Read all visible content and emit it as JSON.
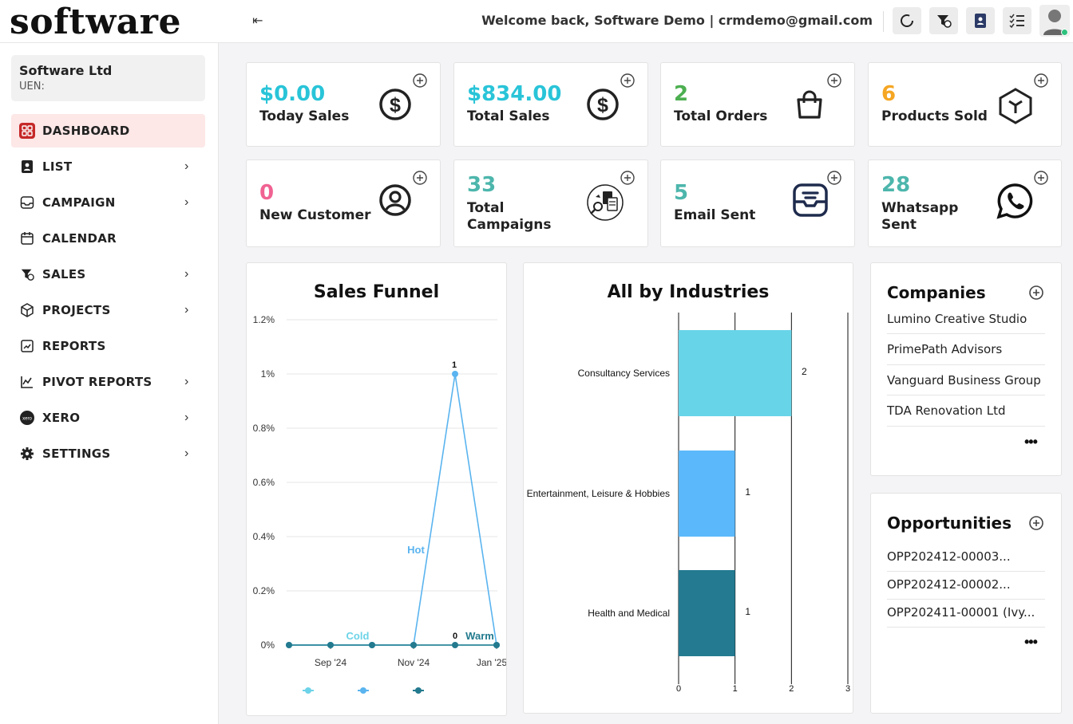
{
  "header": {
    "logo_text": "software",
    "collapse_icon": "⇤",
    "welcome_text": "Welcome back, Software Demo | crmdemo@gmail.com"
  },
  "sidebar": {
    "company_name": "Software Ltd",
    "company_uen": "UEN:",
    "items": [
      {
        "label": "DASHBOARD",
        "icon": "dashboard-icon",
        "active": true,
        "chevron": ""
      },
      {
        "label": "LIST",
        "icon": "contact-book-icon",
        "active": false,
        "chevron": "›"
      },
      {
        "label": "CAMPAIGN",
        "icon": "inbox-icon",
        "active": false,
        "chevron": "›"
      },
      {
        "label": "CALENDAR",
        "icon": "calendar-icon",
        "active": false,
        "chevron": ""
      },
      {
        "label": "SALES",
        "icon": "sales-funnel-icon",
        "active": false,
        "chevron": "›"
      },
      {
        "label": "PROJECTS",
        "icon": "cube-icon",
        "active": false,
        "chevron": "›"
      },
      {
        "label": "REPORTS",
        "icon": "report-icon",
        "active": false,
        "chevron": ""
      },
      {
        "label": "PIVOT REPORTS",
        "icon": "line-chart-icon",
        "active": false,
        "chevron": "›"
      },
      {
        "label": "XERO",
        "icon": "xero-icon",
        "active": false,
        "chevron": "›"
      },
      {
        "label": "SETTINGS",
        "icon": "gear-icon",
        "active": false,
        "chevron": "›"
      }
    ]
  },
  "stats": [
    {
      "value": "$0.00",
      "label": "Today Sales",
      "color": "#29c4d8",
      "icon": "dollar-icon"
    },
    {
      "value": "$834.00",
      "label": "Total Sales",
      "color": "#29c4d8",
      "icon": "dollar-icon"
    },
    {
      "value": "2",
      "label": "Total Orders",
      "color": "#4caf50",
      "icon": "shopping-bag-icon"
    },
    {
      "value": "6",
      "label": "Products Sold",
      "color": "#f5a623",
      "icon": "box-icon"
    },
    {
      "value": "0",
      "label": "New Customer",
      "color": "#f06292",
      "icon": "user-circle-icon"
    },
    {
      "value": "33",
      "label": "Total Campaigns",
      "color": "#4db6ac",
      "icon": "campaign-icon"
    },
    {
      "value": "5",
      "label": "Email Sent",
      "color": "#4db6ac",
      "icon": "email-tray-icon"
    },
    {
      "value": "28",
      "label": "Whatsapp Sent",
      "color": "#4db6ac",
      "icon": "whatsapp-icon"
    }
  ],
  "sales_funnel": {
    "title": "Sales Funnel",
    "series_labels": [
      {
        "text": "Cold",
        "color": "#6dd3e8"
      },
      {
        "text": "Hot",
        "color": "#5ab4ef"
      },
      {
        "text": "Warm",
        "color": "#237a8e"
      }
    ],
    "point_labels": [
      "1",
      "0"
    ]
  },
  "industries": {
    "title": "All by Industries"
  },
  "companies": {
    "title": "Companies",
    "items": [
      "Lumino Creative Studio",
      "PrimePath Advisors",
      "Vanguard Business Group",
      "TDA Renovation Ltd"
    ],
    "more": "•••"
  },
  "opportunities": {
    "title": "Opportunities",
    "items": [
      "OPP202412-00003...",
      "OPP202412-00002...",
      "OPP202411-00001 (Ivy..."
    ],
    "more": "•••"
  },
  "chart_data": [
    {
      "type": "line",
      "title": "Sales Funnel",
      "xlabel": "",
      "ylabel": "",
      "x_ticks": [
        "Sep '24",
        "Nov '24",
        "Jan '25"
      ],
      "y_ticks": [
        "0%",
        "0.2%",
        "0.4%",
        "0.6%",
        "0.8%",
        "1%",
        "1.2%"
      ],
      "ylim": [
        0,
        1.2
      ],
      "x": [
        "2024-08",
        "2024-09",
        "2024-10",
        "2024-11",
        "2024-12",
        "2025-01"
      ],
      "series": [
        {
          "name": "Cold",
          "color": "#6dd3e8",
          "values": [
            0,
            0,
            0,
            0,
            0,
            0
          ]
        },
        {
          "name": "Hot",
          "color": "#5ab4ef",
          "values": [
            0,
            0,
            0,
            0,
            1,
            0
          ]
        },
        {
          "name": "Warm",
          "color": "#237a8e",
          "values": [
            0,
            0,
            0,
            0,
            0,
            0
          ]
        }
      ],
      "legend": "bottom",
      "grid": true
    },
    {
      "type": "bar",
      "orientation": "horizontal",
      "title": "All by Industries",
      "categories": [
        "Consultancy Services",
        "Entertainment, Leisure & Hobbies",
        "Health and Medical"
      ],
      "values": [
        2,
        1,
        1
      ],
      "colors": [
        "#67d4e8",
        "#5bb8fa",
        "#237a91"
      ],
      "x_ticks": [
        "0",
        "1",
        "2",
        "3"
      ],
      "xlim": [
        0,
        3
      ],
      "grid": true
    }
  ]
}
